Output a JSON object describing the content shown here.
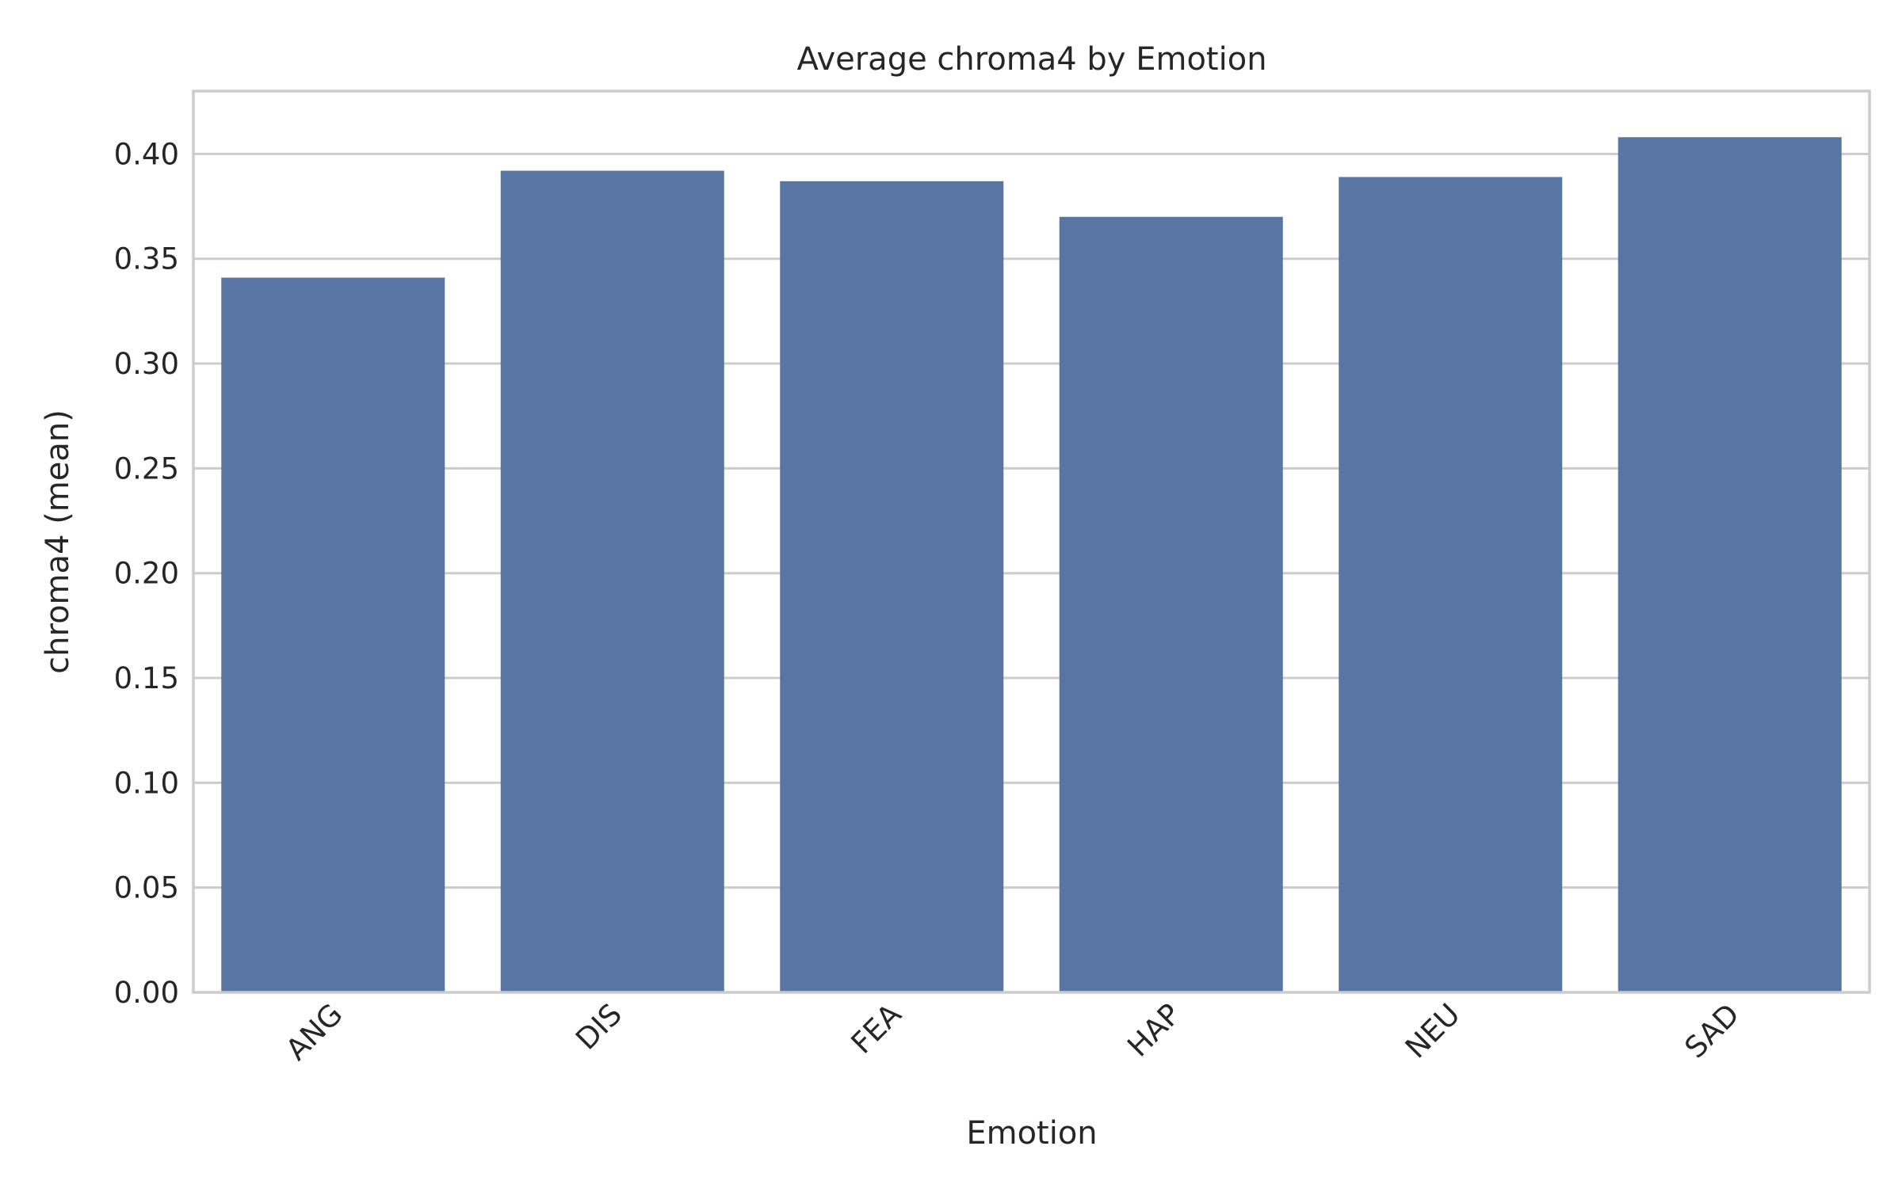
{
  "chart_data": {
    "type": "bar",
    "title": "Average chroma4 by Emotion",
    "xlabel": "Emotion",
    "ylabel": "chroma4 (mean)",
    "categories": [
      "ANG",
      "DIS",
      "FEA",
      "HAP",
      "NEU",
      "SAD"
    ],
    "values": [
      0.341,
      0.392,
      0.387,
      0.37,
      0.389,
      0.408
    ],
    "ylim": [
      0,
      0.43
    ],
    "yticks": [
      "0.00",
      "0.05",
      "0.10",
      "0.15",
      "0.20",
      "0.25",
      "0.30",
      "0.35",
      "0.40"
    ],
    "grid": "horizontal",
    "bar_color": "#5975a4",
    "grid_color": "#cccccc",
    "text_color": "#262626"
  }
}
